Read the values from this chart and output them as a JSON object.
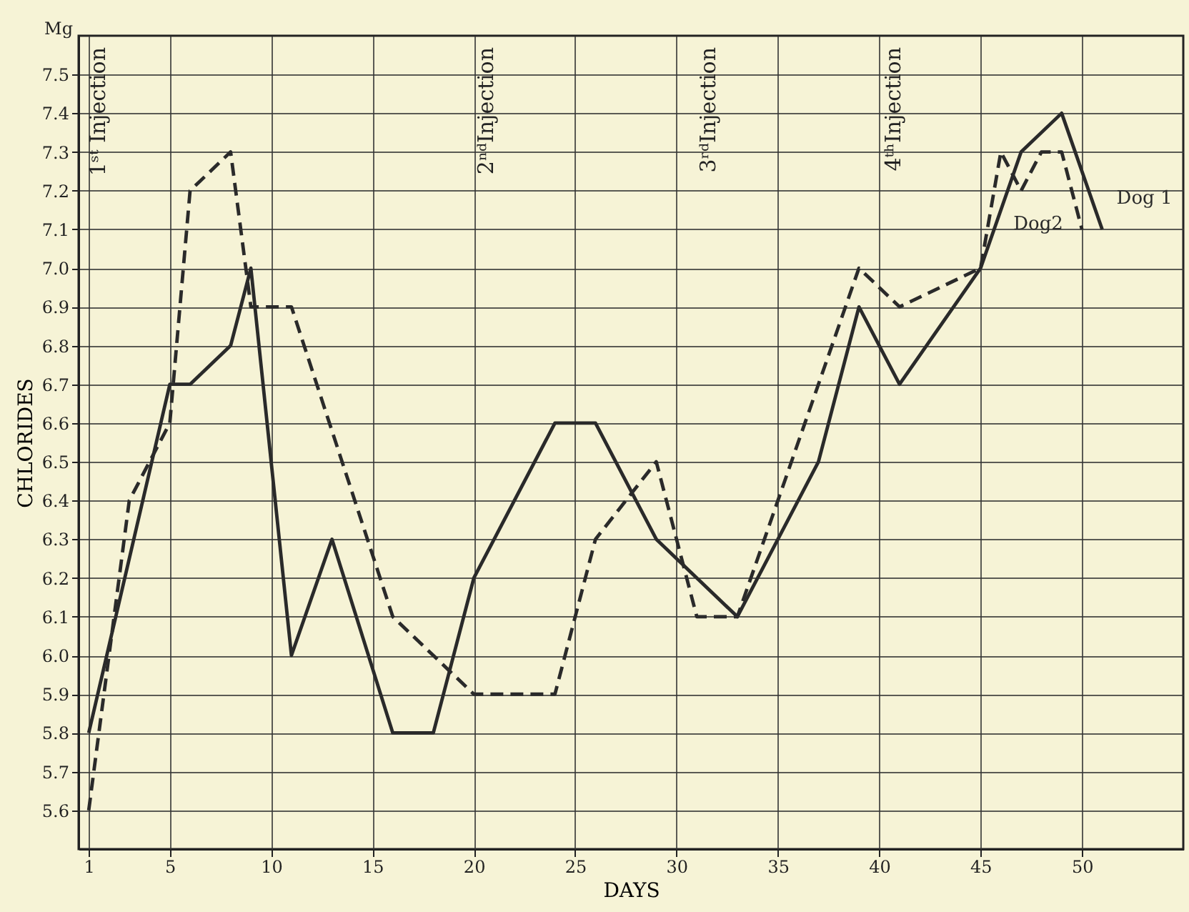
{
  "chart_data": {
    "type": "line",
    "xlabel": "DAYS",
    "ylabel": "CHLORIDES",
    "xlim": [
      0.5,
      55
    ],
    "xticks": [
      1,
      5,
      10,
      15,
      20,
      25,
      30,
      35,
      40,
      45,
      50
    ],
    "ylim": [
      5.5,
      7.6
    ],
    "yticks": [
      5.6,
      5.7,
      5.8,
      5.9,
      {
        "value": 6,
        "label": "6.0"
      },
      6.1,
      6.2,
      6.3,
      6.4,
      6.5,
      6.6,
      6.7,
      6.8,
      6.9,
      {
        "value": 7,
        "label": "7.0"
      },
      7.1,
      7.2,
      7.3,
      7.4,
      7.5
    ],
    "grid": true,
    "legend": false,
    "marker": "none",
    "series": [
      {
        "name": "Dog 1",
        "color": "#2a2a2a",
        "line_style": "solid",
        "x": [
          1,
          5,
          6,
          8,
          9,
          11,
          13,
          16,
          18,
          20,
          24,
          26,
          29,
          33,
          37,
          39,
          41,
          45,
          47,
          49,
          51
        ],
        "values": [
          5.8,
          6.7,
          6.7,
          6.8,
          7.0,
          6.0,
          6.3,
          5.8,
          5.8,
          6.2,
          6.6,
          6.6,
          6.3,
          6.1,
          6.5,
          6.9,
          6.7,
          7.0,
          7.3,
          7.4,
          7.1
        ]
      },
      {
        "name": "Dog2",
        "color": "#2a2a2a",
        "line_style": "dashed",
        "x": [
          1,
          3,
          5,
          6,
          8,
          9,
          11,
          16,
          20,
          24,
          26,
          29,
          31,
          33,
          39,
          41,
          45,
          46,
          47,
          48,
          49,
          50
        ],
        "values": [
          5.6,
          6.4,
          6.6,
          7.2,
          7.3,
          6.9,
          6.9,
          6.1,
          5.9,
          5.9,
          6.3,
          6.5,
          6.1,
          6.1,
          7.0,
          6.9,
          7.0,
          7.3,
          7.2,
          7.3,
          7.3,
          7.1
        ]
      }
    ],
    "annotations": [
      "Mg",
      "1ˢᵗ Injection",
      "2ⁿᵈInjection",
      "3ʳᵈInjection",
      "4ᵗʰInjection"
    ]
  }
}
